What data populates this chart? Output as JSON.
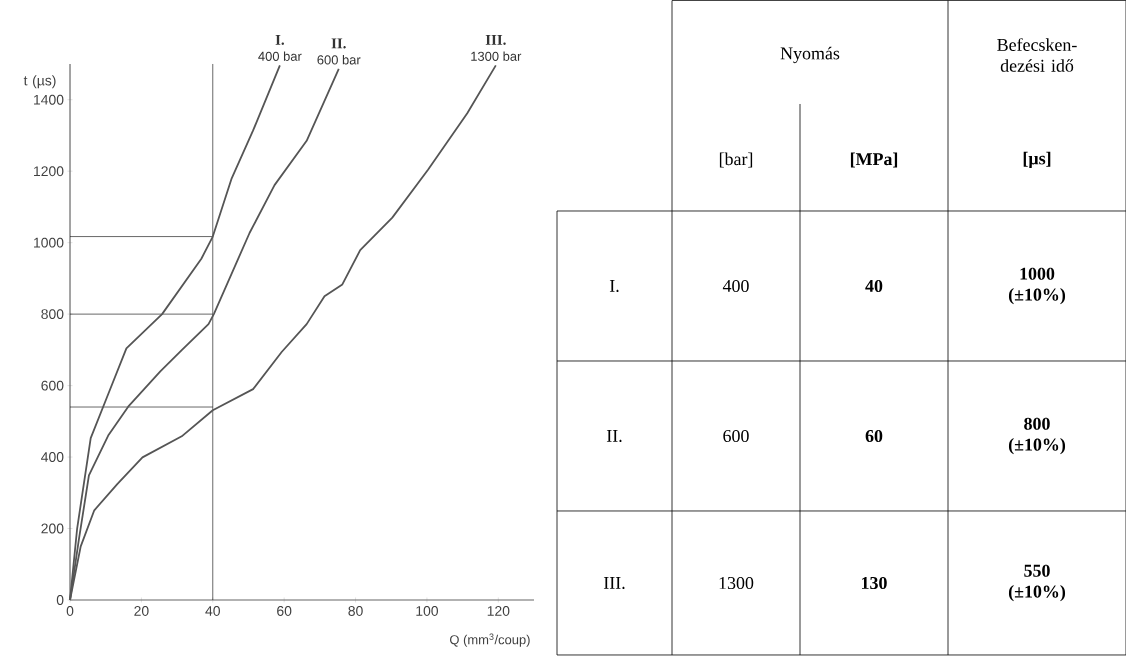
{
  "chart_data": [
    {
      "type": "line",
      "xlabel": "Q (mm$^{3}$/coup)",
      "ylabel": "t (µs)",
      "xlim": [
        0,
        130
      ],
      "ylim": [
        0,
        1500
      ],
      "xticks": [
        0,
        20,
        40,
        60,
        80,
        100,
        120
      ],
      "yticks": [
        0,
        200,
        400,
        600,
        800,
        1000,
        1200,
        1400
      ],
      "series": [
        {
          "name": "I.",
          "color": "#555555",
          "x": [
            0,
            2,
            5.8,
            10.3,
            15.8,
            25.8,
            36.8,
            40,
            45.3,
            51.3,
            58.8
          ],
          "values": [
            0,
            200,
            453,
            566,
            704,
            800,
            955,
            1017,
            1180,
            1314,
            1496
          ]
        },
        {
          "name": "II.",
          "color": "#555555",
          "x": [
            0,
            2.5,
            5.3,
            10.8,
            16.3,
            25.3,
            31.3,
            38.8,
            40.3,
            50.3,
            57.3,
            66.3,
            75.3
          ],
          "values": [
            0,
            170,
            349,
            462,
            541,
            640,
            699,
            772,
            800,
            1027,
            1161,
            1285,
            1486
          ]
        },
        {
          "name": "III.",
          "color": "#555555",
          "x": [
            0,
            3,
            6.8,
            13.3,
            20.3,
            31.3,
            40,
            51.3,
            59.3,
            66.3,
            71.3,
            76.3,
            81.3,
            90.3,
            100.3,
            111.3,
            119.3
          ],
          "values": [
            0,
            150,
            251,
            325,
            399,
            458,
            531,
            590,
            694,
            772,
            850,
            883,
            979,
            1070,
            1204,
            1362,
            1496
          ]
        }
      ],
      "annotations": [
        {
          "text": "400 bar",
          "x": 58.8,
          "y": 1496
        },
        {
          "text": "600 bar",
          "x": 75.3,
          "y": 1486
        },
        {
          "text": "1300 bar",
          "x": 119.3,
          "y": 1496
        }
      ],
      "ref_lines": [
        {
          "axis": "x",
          "value": 40,
          "color": "#000000"
        },
        {
          "axis": "y",
          "value": 1017,
          "color": "#000000"
        },
        {
          "axis": "y",
          "value": 800,
          "color": "#000000"
        },
        {
          "axis": "y",
          "value": 540,
          "color": "#000000"
        }
      ]
    },
    {
      "type": "other",
      "annotations": [
        "Nyomás",
        "Befecsken- dezési idő",
        "[bar]",
        "[MPa]",
        "[µs]",
        "I.",
        "400",
        "40",
        "1000 (±10%)",
        "II.",
        "600",
        "60",
        "800 (±10%)",
        "III.",
        "1300",
        "130",
        "550 (±10%)"
      ]
    }
  ]
}
